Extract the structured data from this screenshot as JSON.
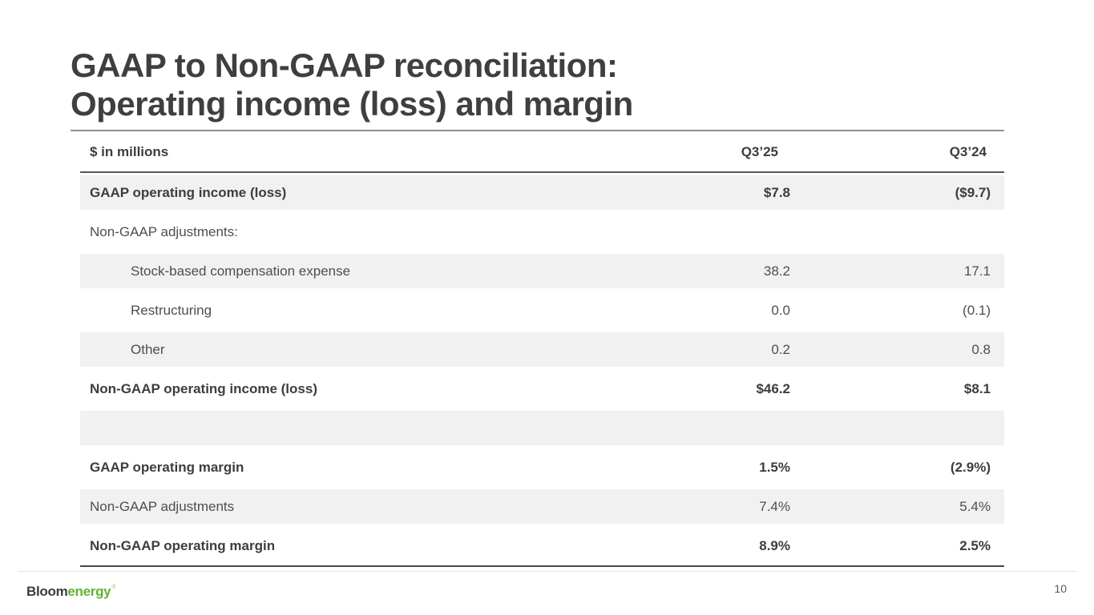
{
  "slide": {
    "title_line1": "GAAP to Non-GAAP reconciliation:",
    "title_line2": "Operating income (loss) and margin",
    "page_number": "10",
    "logo_bloom": "Bloom",
    "logo_energy": "energy",
    "logo_mark": "®"
  },
  "table": {
    "unit_label": "$ in millions",
    "columns": [
      "Q3’25",
      "Q3’24"
    ],
    "rows": [
      {
        "label": "GAAP operating income (loss)",
        "q325": "$7.8",
        "q324": "($9.7)",
        "bold": true,
        "shaded": true,
        "indent": false
      },
      {
        "label": "Non-GAAP adjustments:",
        "q325": "",
        "q324": "",
        "bold": false,
        "shaded": false,
        "indent": false
      },
      {
        "label": "Stock-based compensation expense",
        "q325": "38.2",
        "q324": "17.1",
        "bold": false,
        "shaded": true,
        "indent": true
      },
      {
        "label": "Restructuring",
        "q325": "0.0",
        "q324": "(0.1)",
        "bold": false,
        "shaded": false,
        "indent": true
      },
      {
        "label": "Other",
        "q325": "0.2",
        "q324": "0.8",
        "bold": false,
        "shaded": true,
        "indent": true
      },
      {
        "label": "Non-GAAP operating income (loss)",
        "q325": "$46.2",
        "q324": "$8.1",
        "bold": true,
        "shaded": false,
        "indent": false
      },
      {
        "label": "",
        "q325": "",
        "q324": "",
        "bold": false,
        "shaded": true,
        "indent": false
      },
      {
        "label": "GAAP operating margin",
        "q325": "1.5%",
        "q324": "(2.9%)",
        "bold": true,
        "shaded": false,
        "indent": false
      },
      {
        "label": "Non-GAAP adjustments",
        "q325": "7.4%",
        "q324": "5.4%",
        "bold": false,
        "shaded": true,
        "indent": false
      },
      {
        "label": "Non-GAAP operating margin",
        "q325": "8.9%",
        "q324": "2.5%",
        "bold": true,
        "shaded": false,
        "indent": false
      }
    ]
  },
  "chart_data": {
    "type": "table",
    "title": "GAAP to Non-GAAP reconciliation: Operating income (loss) and margin",
    "unit": "$ in millions",
    "columns": [
      "Q3’25",
      "Q3’24"
    ],
    "rows": [
      [
        "GAAP operating income (loss)",
        "$7.8",
        "($9.7)"
      ],
      [
        "Non-GAAP adjustments:",
        "",
        ""
      ],
      [
        "Stock-based compensation expense",
        "38.2",
        "17.1"
      ],
      [
        "Restructuring",
        "0.0",
        "(0.1)"
      ],
      [
        "Other",
        "0.2",
        "0.8"
      ],
      [
        "Non-GAAP operating income (loss)",
        "$46.2",
        "$8.1"
      ],
      [
        "GAAP operating margin",
        "1.5%",
        "(2.9%)"
      ],
      [
        "Non-GAAP adjustments",
        "7.4%",
        "5.4%"
      ],
      [
        "Non-GAAP operating margin",
        "8.9%",
        "2.5%"
      ]
    ]
  },
  "colors": {
    "title_text": "#3f3f3f",
    "body_text": "#4e4e4e",
    "row_shading": "#f1f1f2",
    "rule_dark": "#565656",
    "rule_light": "#e4e4e4",
    "logo_green": "#61b233"
  }
}
